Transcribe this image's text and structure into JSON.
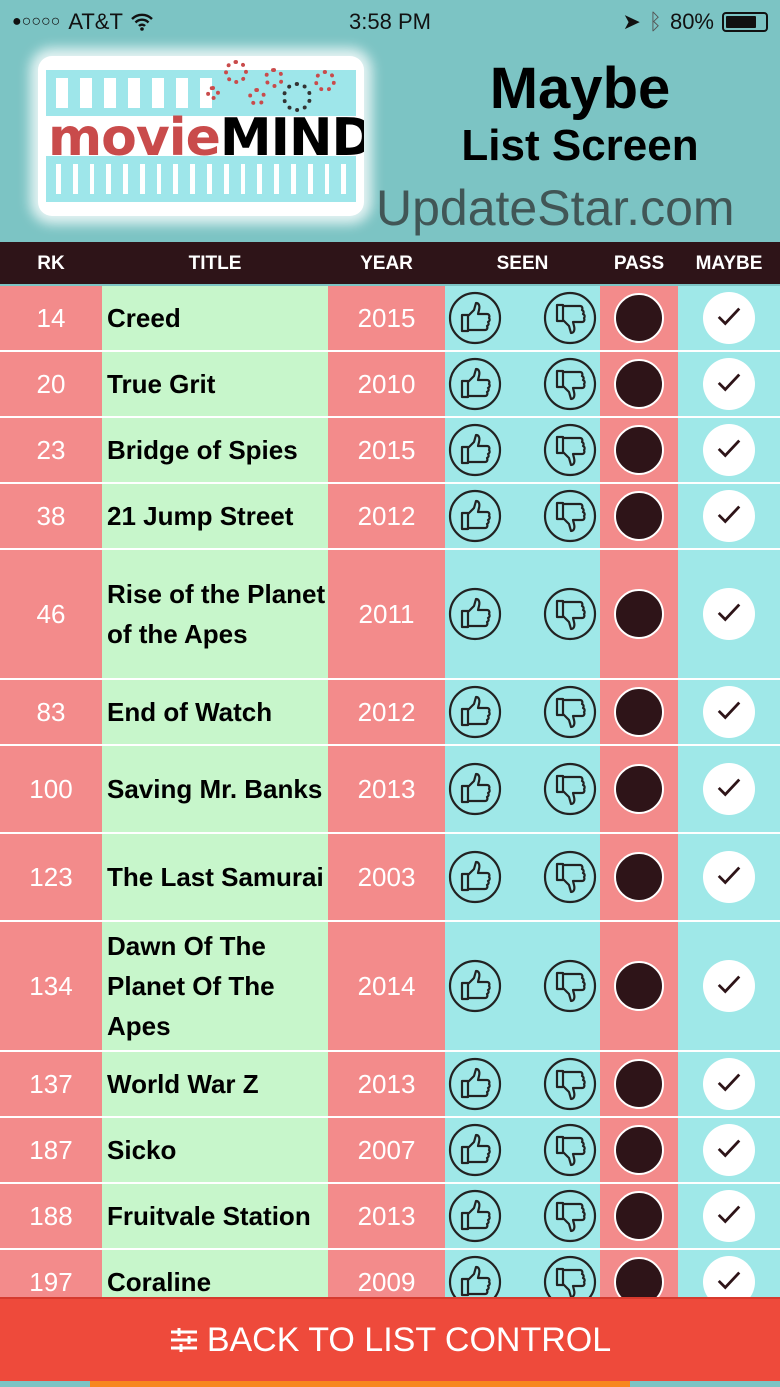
{
  "status_bar": {
    "signal": "●○○○○",
    "carrier": "AT&T",
    "time": "3:58 PM",
    "battery": "80%",
    "battery_level": 0.8
  },
  "logo": {
    "text_a": "movie",
    "text_b": "MIND"
  },
  "title": {
    "line1": "Maybe",
    "line2": "List Screen"
  },
  "columns": {
    "rk": "RK",
    "title": "TITLE",
    "year": "YEAR",
    "seen": "SEEN",
    "pass": "PASS",
    "maybe": "MAYBE"
  },
  "rows": [
    {
      "rk": "14",
      "title": "Creed",
      "year": "2015",
      "lines": 1
    },
    {
      "rk": "20",
      "title": "True Grit",
      "year": "2010",
      "lines": 1
    },
    {
      "rk": "23",
      "title": "Bridge of Spies",
      "year": "2015",
      "lines": 1
    },
    {
      "rk": "38",
      "title": "21 Jump Street",
      "year": "2012",
      "lines": 1
    },
    {
      "rk": "46",
      "title": "Rise of the Planet of the Apes",
      "year": "2011",
      "lines": 3
    },
    {
      "rk": "83",
      "title": "End of Watch",
      "year": "2012",
      "lines": 1
    },
    {
      "rk": "100",
      "title": "Saving Mr. Banks",
      "year": "2013",
      "lines": 2
    },
    {
      "rk": "123",
      "title": "The Last Samurai",
      "year": "2003",
      "lines": 2
    },
    {
      "rk": "134",
      "title": "Dawn Of The Planet Of The Apes",
      "year": "2014",
      "lines": 3
    },
    {
      "rk": "137",
      "title": "World War Z",
      "year": "2013",
      "lines": 1
    },
    {
      "rk": "187",
      "title": "Sicko",
      "year": "2007",
      "lines": 1
    },
    {
      "rk": "188",
      "title": "Fruitvale Station",
      "year": "2013",
      "lines": 1
    },
    {
      "rk": "197",
      "title": "Coraline",
      "year": "2009",
      "lines": 1
    }
  ],
  "icons": {
    "seen_yes": "thumbs-up-icon",
    "seen_no": "thumbs-down-icon",
    "pass": "filled-circle",
    "maybe": "checkmark-icon",
    "button": "sliders-icon"
  },
  "button": {
    "label": "BACK TO LIST CONTROL"
  },
  "watermark": "UpdateStar.com",
  "colors": {
    "header": "#2e1418",
    "red_cell": "#f38b8b",
    "green_cell": "#c7f6cb",
    "cyan_cell": "#9fe8e8",
    "button": "#ee4a3b",
    "background": "#7cc4c4"
  }
}
